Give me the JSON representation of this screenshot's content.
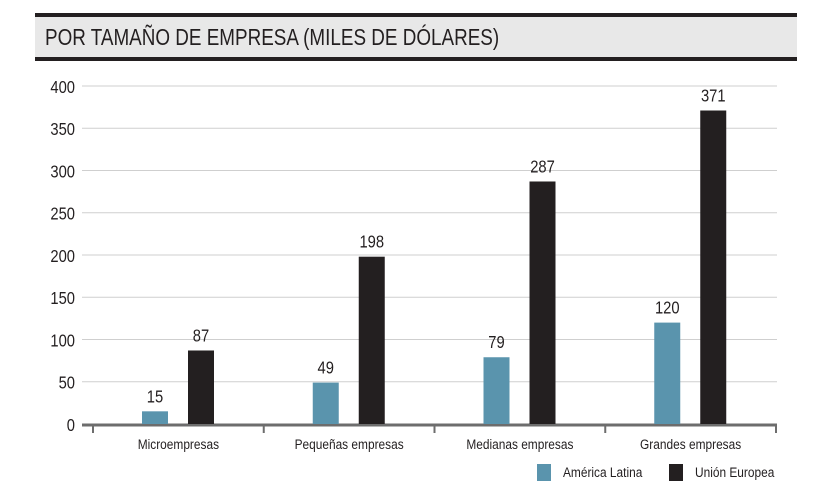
{
  "chart_data": {
    "type": "bar",
    "title": "POR TAMAÑO DE EMPRESA (MILES DE DÓLARES)",
    "categories": [
      "Microempresas",
      "Pequeñas empresas",
      "Medianas empresas",
      "Grandes empresas"
    ],
    "series": [
      {
        "name": "América Latina",
        "color": "#5a94ad",
        "values": [
          15,
          49,
          79,
          120
        ]
      },
      {
        "name": "Unión Europea",
        "color": "#231f20",
        "values": [
          87,
          198,
          287,
          371
        ]
      }
    ],
    "ylim": [
      0,
      400
    ],
    "yticks": [
      0,
      50,
      100,
      150,
      200,
      250,
      300,
      350,
      400
    ],
    "xlabel": "",
    "ylabel": "",
    "grid": true,
    "legend": "bottom-right",
    "data_labels": true
  }
}
